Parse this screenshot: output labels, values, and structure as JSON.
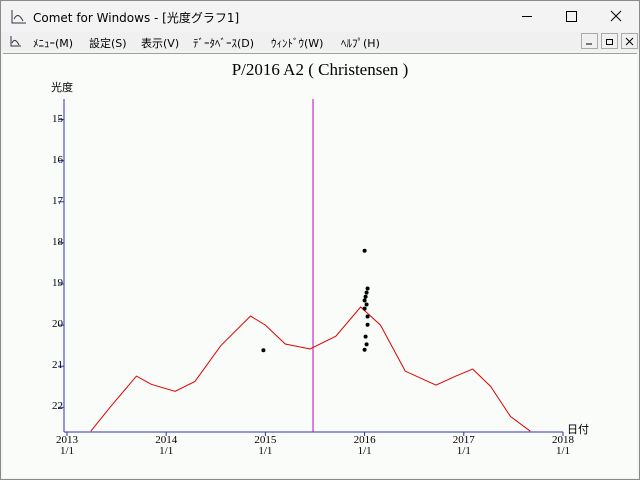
{
  "window": {
    "title": "Comet for Windows - [光度グラフ1]"
  },
  "menu": [
    "ﾒﾆｭｰ(M)",
    "設定(S)",
    "表示(V)",
    "ﾃﾞｰﾀﾍﾞｰｽ(D)",
    "ｳｨﾝﾄﾞｳ(W)",
    "ﾍﾙﾌﾟ(H)"
  ],
  "chart_data": {
    "type": "line",
    "title": "P/2016 A2 ( Christensen )",
    "y_label": "光度",
    "x_label": "日付",
    "xlim": [
      2013,
      2018
    ],
    "xticks": [
      {
        "value": 2013,
        "label": "2013\n1/1"
      },
      {
        "value": 2014,
        "label": "2014\n1/1"
      },
      {
        "value": 2015,
        "label": "2015\n1/1"
      },
      {
        "value": 2016,
        "label": "2016\n1/1"
      },
      {
        "value": 2017,
        "label": "2017\n1/1"
      },
      {
        "value": 2018,
        "label": "2018\n1/1"
      }
    ],
    "ylim": [
      22.6,
      14.5
    ],
    "yticks": [
      15,
      16,
      17,
      18,
      19,
      20,
      21,
      22
    ],
    "axis_color": "#3030b0",
    "vline_x": 2015.48,
    "vline_color": "#c000c0",
    "series": [
      {
        "type": "line",
        "color": "#e00000",
        "x": [
          2013.24,
          2013.44,
          2013.7,
          2013.85,
          2014.09,
          2014.29,
          2014.55,
          2014.85,
          2015.0,
          2015.2,
          2015.45,
          2015.71,
          2015.96,
          2016.16,
          2016.41,
          2016.72,
          2016.92,
          2017.09,
          2017.27,
          2017.47,
          2017.67
        ],
        "values": [
          22.58,
          21.98,
          21.24,
          21.44,
          21.61,
          21.37,
          20.5,
          19.78,
          20.0,
          20.46,
          20.58,
          20.27,
          19.56,
          20.0,
          21.12,
          21.46,
          21.24,
          21.07,
          21.49,
          22.22,
          22.58
        ]
      },
      {
        "type": "scatter",
        "color": "#000000",
        "x": [
          2014.98,
          2016.0,
          2016.03,
          2016.02,
          2016.01,
          2016.0,
          2016.02,
          2016.0,
          2016.03,
          2016.03,
          2016.01,
          2016.02,
          2016.0
        ],
        "values": [
          20.61,
          18.19,
          19.11,
          19.21,
          19.31,
          19.4,
          19.5,
          19.6,
          19.79,
          19.99,
          20.28,
          20.47,
          20.6
        ]
      }
    ]
  }
}
